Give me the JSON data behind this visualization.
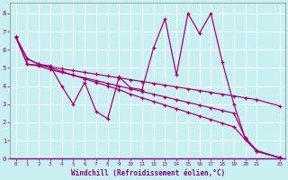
{
  "xlabel": "Windchill (Refroidissement éolien,°C)",
  "background_color": "#c8f0f0",
  "line_color": "#aa0077",
  "xlim": [
    -0.5,
    23.5
  ],
  "ylim": [
    0,
    8.6
  ],
  "xtick_vals": [
    0,
    1,
    2,
    3,
    4,
    5,
    6,
    7,
    8,
    9,
    10,
    11,
    12,
    13,
    14,
    15,
    16,
    17,
    18,
    19,
    20,
    21,
    23
  ],
  "ytick_vals": [
    0,
    1,
    2,
    3,
    4,
    5,
    6,
    7,
    8
  ],
  "xdata": [
    0,
    1,
    2,
    3,
    4,
    5,
    6,
    7,
    8,
    9,
    10,
    11,
    12,
    13,
    14,
    15,
    16,
    17,
    18,
    19,
    20,
    21,
    23
  ],
  "series": [
    [
      6.7,
      5.5,
      5.2,
      5.1,
      4.0,
      3.0,
      4.2,
      2.6,
      2.2,
      4.5,
      3.9,
      3.8,
      6.1,
      7.7,
      4.6,
      8.0,
      6.9,
      8.0,
      5.3,
      3.0,
      1.1,
      0.4,
      0.05
    ],
    [
      6.7,
      5.2,
      5.15,
      5.05,
      4.95,
      4.85,
      4.75,
      4.65,
      4.55,
      4.45,
      4.35,
      4.25,
      4.15,
      4.05,
      3.95,
      3.85,
      3.75,
      3.65,
      3.55,
      3.45,
      3.35,
      3.25,
      2.9
    ],
    [
      6.7,
      5.2,
      5.1,
      4.9,
      4.75,
      4.6,
      4.45,
      4.3,
      4.15,
      4.0,
      3.85,
      3.7,
      3.55,
      3.4,
      3.25,
      3.1,
      2.95,
      2.8,
      2.65,
      2.5,
      1.15,
      0.45,
      0.05
    ],
    [
      6.7,
      5.5,
      5.2,
      5.0,
      4.8,
      4.6,
      4.4,
      4.2,
      4.0,
      3.8,
      3.55,
      3.35,
      3.15,
      2.95,
      2.75,
      2.55,
      2.35,
      2.15,
      1.95,
      1.75,
      1.05,
      0.4,
      0.05
    ]
  ]
}
